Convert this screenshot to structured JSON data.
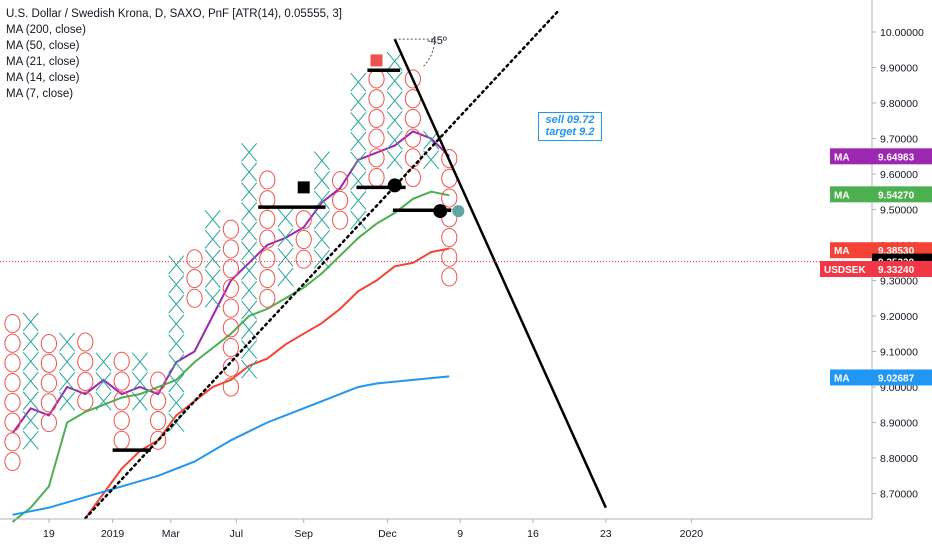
{
  "legend": {
    "title": "U.S. Dollar / Swedish Krona, D, SAXO, PnF [ATR(14), 0.05555, 3]",
    "ma_lines": [
      "MA (200, close)",
      "MA (50, close)",
      "MA (21, close)",
      "MA (14, close)",
      "MA (7, close)"
    ]
  },
  "annotation": {
    "angle_label": "-45º",
    "note_line1": "sell 09.72",
    "note_line2": "target 9.2"
  },
  "chart_data": {
    "type": "point_and_figure",
    "symbol": "USDSEK",
    "y_axis": {
      "ylim": [
        8.67,
        10.04
      ],
      "ticks": [
        "10.00000",
        "9.90000",
        "9.80000",
        "9.70000",
        "9.60000",
        "9.50000",
        "9.40000",
        "9.30000",
        "9.20000",
        "9.10000",
        "9.00000",
        "8.90000",
        "8.80000",
        "8.70000"
      ],
      "tick_values": [
        10.0,
        9.9,
        9.8,
        9.7,
        9.6,
        9.5,
        9.4,
        9.3,
        9.2,
        9.1,
        9.0,
        8.9,
        8.8,
        8.7
      ]
    },
    "x_axis": {
      "labels": [
        "19",
        "2019",
        "Mar",
        "Jul",
        "Sep",
        "Dec",
        "9",
        "16",
        "23",
        "2020"
      ],
      "label_columns": [
        2,
        5.5,
        8.7,
        12.3,
        16,
        20.6,
        24.6,
        28.6,
        32.6,
        37.3
      ]
    },
    "box_size": 0.05555,
    "columns": [
      {
        "type": "O",
        "top": 9.16,
        "bottom": 8.79
      },
      {
        "type": "X",
        "top": 9.21,
        "bottom": 8.85
      },
      {
        "type": "O",
        "top": 9.1,
        "bottom": 8.9
      },
      {
        "type": "X",
        "top": 9.1,
        "bottom": 8.96
      },
      {
        "type": "O",
        "top": 9.1,
        "bottom": 8.96
      },
      {
        "type": "X",
        "top": 9.05,
        "bottom": 8.96
      },
      {
        "type": "O",
        "top": 9.05,
        "bottom": 8.85
      },
      {
        "type": "X",
        "top": 9.05,
        "bottom": 8.96
      },
      {
        "type": "O",
        "top": 8.99,
        "bottom": 8.85
      },
      {
        "type": "X",
        "top": 9.36,
        "bottom": 8.9
      },
      {
        "type": "O",
        "top": 9.36,
        "bottom": 9.25
      },
      {
        "type": "X",
        "top": 9.47,
        "bottom": 9.25
      },
      {
        "type": "O",
        "top": 9.42,
        "bottom": 9.0
      },
      {
        "type": "X",
        "top": 9.64,
        "bottom": 9.05
      },
      {
        "type": "O",
        "top": 9.59,
        "bottom": 9.25
      },
      {
        "type": "X",
        "top": 9.47,
        "bottom": 9.31
      },
      {
        "type": "O",
        "top": 9.47,
        "bottom": 9.36
      },
      {
        "type": "X",
        "top": 9.64,
        "bottom": 9.36
      },
      {
        "type": "O",
        "top": 9.59,
        "bottom": 9.47
      },
      {
        "type": "X",
        "top": 9.87,
        "bottom": 9.47
      },
      {
        "type": "O",
        "top": 9.87,
        "bottom": 9.59
      },
      {
        "type": "X",
        "top": 9.92,
        "bottom": 9.64
      },
      {
        "type": "O",
        "top": 9.87,
        "bottom": 9.59
      },
      {
        "type": "X",
        "top": 9.7,
        "bottom": 9.64
      },
      {
        "type": "O",
        "top": 9.64,
        "bottom": 9.31
      }
    ],
    "moving_averages": [
      {
        "name": "MA (7, close)",
        "color": "#9c27b0",
        "last": "9.64983",
        "points": [
          [
            0,
            8.87
          ],
          [
            1,
            8.94
          ],
          [
            2,
            8.92
          ],
          [
            3,
            9.0
          ],
          [
            4,
            8.98
          ],
          [
            5,
            9.02
          ],
          [
            6,
            8.98
          ],
          [
            7,
            9.0
          ],
          [
            8,
            8.98
          ],
          [
            9,
            9.07
          ],
          [
            10,
            9.1
          ],
          [
            11,
            9.2
          ],
          [
            12,
            9.3
          ],
          [
            13,
            9.35
          ],
          [
            14,
            9.4
          ],
          [
            15,
            9.42
          ],
          [
            16,
            9.45
          ],
          [
            17,
            9.52
          ],
          [
            18,
            9.56
          ],
          [
            19,
            9.64
          ],
          [
            20,
            9.66
          ],
          [
            21,
            9.68
          ],
          [
            22,
            9.72
          ],
          [
            23,
            9.7
          ],
          [
            24,
            9.65
          ]
        ]
      },
      {
        "name": "MA (14, close)",
        "color": "#4caf50",
        "last": "9.54270",
        "points": [
          [
            0,
            8.62
          ],
          [
            1,
            8.66
          ],
          [
            2,
            8.72
          ],
          [
            3,
            8.9
          ],
          [
            4,
            8.93
          ],
          [
            5,
            8.95
          ],
          [
            6,
            8.97
          ],
          [
            7,
            8.98
          ],
          [
            8,
            9.0
          ],
          [
            9,
            9.02
          ],
          [
            10,
            9.07
          ],
          [
            11,
            9.11
          ],
          [
            12,
            9.15
          ],
          [
            13,
            9.2
          ],
          [
            14,
            9.22
          ],
          [
            15,
            9.25
          ],
          [
            16,
            9.28
          ],
          [
            17,
            9.32
          ],
          [
            18,
            9.37
          ],
          [
            19,
            9.42
          ],
          [
            20,
            9.46
          ],
          [
            21,
            9.49
          ],
          [
            22,
            9.53
          ],
          [
            23,
            9.55
          ],
          [
            24,
            9.54
          ]
        ]
      },
      {
        "name": "MA (21, close)",
        "color": "#f44336",
        "last": "9.38530",
        "points": [
          [
            4,
            8.63
          ],
          [
            5,
            8.7
          ],
          [
            6,
            8.77
          ],
          [
            7,
            8.82
          ],
          [
            8,
            8.85
          ],
          [
            9,
            8.92
          ],
          [
            10,
            8.96
          ],
          [
            11,
            9.0
          ],
          [
            12,
            9.02
          ],
          [
            13,
            9.06
          ],
          [
            14,
            9.08
          ],
          [
            15,
            9.12
          ],
          [
            16,
            9.15
          ],
          [
            17,
            9.18
          ],
          [
            18,
            9.22
          ],
          [
            19,
            9.27
          ],
          [
            20,
            9.3
          ],
          [
            21,
            9.34
          ],
          [
            22,
            9.35
          ],
          [
            23,
            9.38
          ],
          [
            24,
            9.39
          ]
        ]
      },
      {
        "name": "MA (50, close)",
        "color": "#2196f3",
        "last": "9.02687",
        "points": [
          [
            0,
            8.64
          ],
          [
            2,
            8.66
          ],
          [
            4,
            8.69
          ],
          [
            6,
            8.72
          ],
          [
            8,
            8.75
          ],
          [
            10,
            8.79
          ],
          [
            12,
            8.85
          ],
          [
            14,
            8.9
          ],
          [
            16,
            8.94
          ],
          [
            18,
            8.98
          ],
          [
            19,
            9.0
          ],
          [
            20,
            9.01
          ],
          [
            22,
            9.02
          ],
          [
            24,
            9.03
          ]
        ]
      }
    ],
    "last_price": {
      "label": "USDSEK",
      "value": "9.35329",
      "extra": "9.33240"
    },
    "trendlines": [
      {
        "style": "dotted",
        "from": [
          4,
          8.63
        ],
        "to": [
          30,
          10.06
        ]
      },
      {
        "style": "solid",
        "from": [
          21,
          9.98
        ],
        "to": [
          32.6,
          8.66
        ]
      }
    ]
  },
  "colors": {
    "x_color": "#26a69a",
    "o_color": "#ef5350",
    "axis_text": "#131722",
    "price_line": "#f23645"
  }
}
